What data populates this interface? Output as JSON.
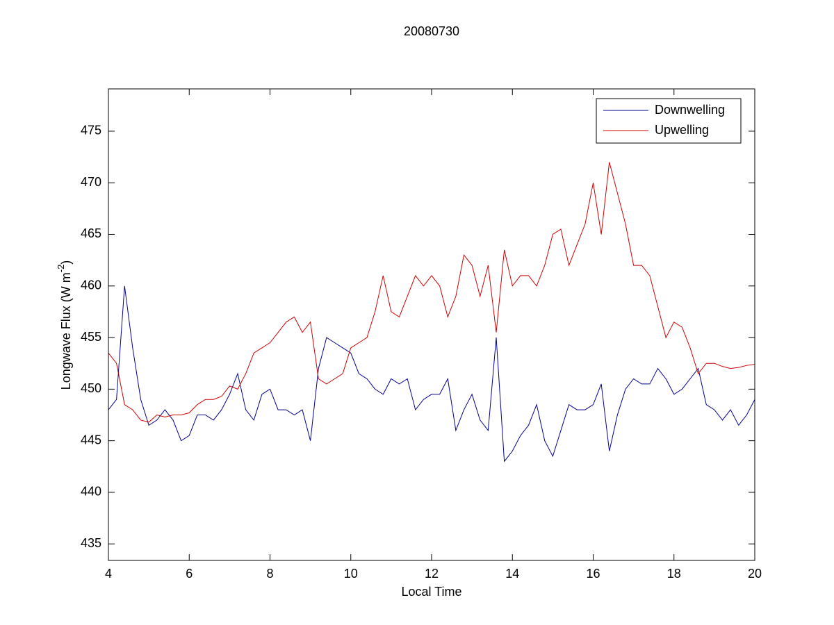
{
  "chart_data": {
    "type": "line",
    "title": "20080730",
    "xlabel": "Local Time",
    "ylabel": [
      "Longwave Flux (W m",
      "-2",
      ")"
    ],
    "x": [
      4.0,
      4.2,
      4.4,
      4.6,
      4.8,
      5.0,
      5.2,
      5.4,
      5.6,
      5.8,
      6.0,
      6.2,
      6.4,
      6.6,
      6.8,
      7.0,
      7.2,
      7.4,
      7.6,
      7.8,
      8.0,
      8.2,
      8.4,
      8.6,
      8.8,
      9.0,
      9.2,
      9.4,
      9.6,
      9.8,
      10.0,
      10.2,
      10.4,
      10.6,
      10.8,
      11.0,
      11.2,
      11.4,
      11.6,
      11.8,
      12.0,
      12.2,
      12.4,
      12.6,
      12.8,
      13.0,
      13.2,
      13.4,
      13.6,
      13.8,
      14.0,
      14.2,
      14.4,
      14.6,
      14.8,
      15.0,
      15.2,
      15.4,
      15.6,
      15.8,
      16.0,
      16.2,
      16.4,
      16.6,
      16.8,
      17.0,
      17.2,
      17.4,
      17.6,
      17.8,
      18.0,
      18.2,
      18.4,
      18.6,
      18.8,
      19.0,
      19.2,
      19.4,
      19.6,
      19.8,
      20.0
    ],
    "series": [
      {
        "name": "Downwelling",
        "color": "#00008b",
        "values": [
          448,
          449,
          460,
          454,
          449,
          446.5,
          447,
          448,
          447,
          445,
          445.5,
          447.5,
          447.5,
          447,
          448,
          449.5,
          451.5,
          448,
          447,
          449.5,
          450,
          448,
          448,
          447.5,
          448,
          445,
          452,
          455,
          454.5,
          454,
          453.5,
          451.5,
          451,
          450,
          449.5,
          451,
          450.5,
          451,
          448,
          449,
          449.5,
          449.5,
          451,
          446,
          448,
          449.5,
          447,
          446,
          455,
          443,
          444,
          445.5,
          446.5,
          448.5,
          445,
          443.5,
          446,
          448.5,
          448,
          448,
          448.5,
          450.5,
          444,
          447.5,
          450,
          451,
          450.5,
          450.5,
          452,
          451,
          449.5,
          450,
          451,
          452,
          448.5,
          448,
          447,
          448,
          446.5,
          447.5,
          449
        ]
      },
      {
        "name": "Upwelling",
        "color": "#cc0000",
        "values": [
          453.5,
          452.5,
          448.5,
          448,
          447,
          446.8,
          447.5,
          447.3,
          447.5,
          447.5,
          447.7,
          448.5,
          449,
          449,
          449.3,
          450.3,
          450,
          451.5,
          453.5,
          454,
          454.5,
          455.5,
          456.5,
          457,
          455.5,
          456.5,
          451,
          450.5,
          451,
          451.5,
          454,
          454.5,
          455,
          457.5,
          461,
          457.5,
          457,
          459,
          461,
          460,
          461,
          460,
          457,
          459,
          463,
          462,
          459,
          462,
          455.5,
          463.5,
          460,
          461,
          461,
          460,
          462,
          465,
          465.5,
          462,
          464,
          466,
          470,
          465,
          472,
          469,
          466,
          462,
          462,
          461,
          458,
          455,
          456.5,
          456,
          454,
          451.5,
          452.5,
          452.5,
          452.2,
          452,
          452.1,
          452.3,
          452.4
        ]
      }
    ],
    "xlim": [
      4,
      20
    ],
    "ylim": [
      433.4,
      479.1
    ],
    "xticks": [
      4,
      6,
      8,
      10,
      12,
      14,
      16,
      18,
      20
    ],
    "yticks": [
      435,
      440,
      445,
      450,
      455,
      460,
      465,
      470,
      475
    ],
    "legend": "upper right"
  }
}
